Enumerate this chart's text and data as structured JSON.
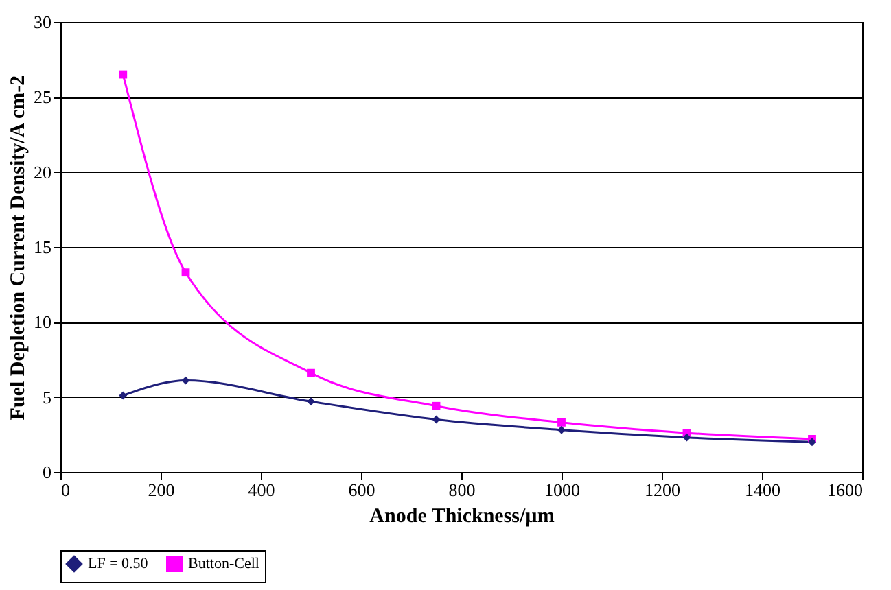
{
  "chart_data": {
    "type": "line",
    "xlabel": "Anode Thickness/µm",
    "ylabel": "Fuel Depletion Current Density/A cm-2",
    "x": [
      125,
      250,
      500,
      750,
      1000,
      1250,
      1500
    ],
    "series": [
      {
        "name": "LF = 0.50",
        "color": "#1f1f7a",
        "marker": "diamond",
        "values": [
          5.1,
          6.1,
          4.7,
          3.5,
          2.8,
          2.3,
          2.0
        ]
      },
      {
        "name": "Button-Cell",
        "color": "#ff00ff",
        "marker": "square",
        "values": [
          26.5,
          13.3,
          6.6,
          4.4,
          3.3,
          2.6,
          2.2
        ]
      }
    ],
    "xlim": [
      0,
      1600
    ],
    "xticks": [
      0,
      200,
      400,
      600,
      800,
      1000,
      1200,
      1400,
      1600
    ],
    "ylim": [
      0,
      30
    ],
    "yticks": [
      0,
      5,
      10,
      15,
      20,
      25,
      30
    ],
    "grid": "y",
    "legend": "bottom",
    "line_style": "solid"
  }
}
